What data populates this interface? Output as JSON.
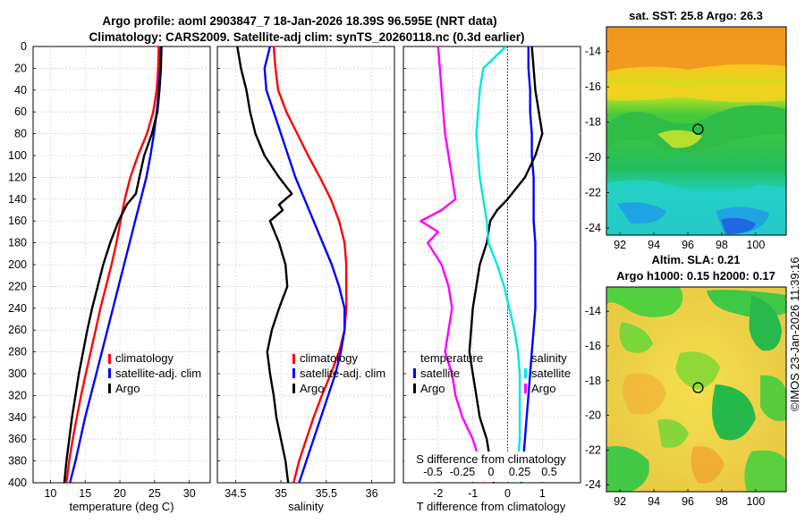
{
  "main_title": {
    "line1": "Argo profile: aoml 2903847_7 18-Jan-2026 18.39S 96.595E (NRT data)",
    "line2": "Climatology: CARS2009. Satellite-adj clim: synTS_20260118.nc (0.3d earlier)"
  },
  "watermark": "©IMOS 23-Jan-2026 11:39:16",
  "colors": {
    "climatology": "#ff0000",
    "satellite": "#0000ff",
    "argo": "#000000",
    "salinity_satellite": "#00e5e5",
    "salinity_argo": "#ff00ff"
  },
  "chart_data": [
    {
      "id": "temperature",
      "type": "line",
      "xlabel": "temperature (deg C)",
      "ylabel": "",
      "xlim": [
        7.5,
        33
      ],
      "ylim": [
        400,
        0
      ],
      "xticks": [
        10,
        15,
        20,
        25,
        30
      ],
      "xticklabels": [
        "10",
        "15",
        "20",
        "25",
        "30"
      ],
      "yticks": [
        0,
        20,
        40,
        60,
        80,
        100,
        120,
        140,
        160,
        180,
        200,
        220,
        240,
        260,
        280,
        300,
        320,
        340,
        360,
        380,
        400
      ],
      "grid": true,
      "legend": [
        "climatology",
        "satellite-adj. clim",
        "Argo"
      ],
      "legend_position": "lower-right",
      "series": [
        {
          "name": "climatology",
          "color": "#ff0000",
          "depth": [
            0,
            20,
            40,
            60,
            80,
            100,
            120,
            140,
            160,
            180,
            200,
            220,
            240,
            260,
            280,
            300,
            320,
            340,
            360,
            380,
            400
          ],
          "x": [
            25.6,
            25.5,
            25.3,
            24.8,
            23.9,
            22.6,
            21.5,
            20.7,
            20.1,
            19.5,
            18.8,
            18.0,
            17.2,
            16.5,
            15.8,
            15.1,
            14.4,
            13.8,
            13.2,
            12.7,
            12.3
          ]
        },
        {
          "name": "satellite-adj. clim",
          "color": "#0000ff",
          "depth": [
            0,
            20,
            40,
            60,
            80,
            100,
            120,
            140,
            160,
            180,
            200,
            220,
            240,
            260,
            280,
            300,
            320,
            340,
            360,
            380,
            400
          ],
          "x": [
            25.9,
            25.8,
            25.6,
            25.3,
            24.9,
            24.4,
            23.8,
            23.0,
            22.2,
            21.4,
            20.6,
            19.8,
            19.0,
            18.2,
            17.4,
            16.6,
            15.8,
            15.0,
            14.3,
            13.6,
            12.8
          ]
        },
        {
          "name": "Argo",
          "color": "#000000",
          "depth": [
            0,
            20,
            40,
            60,
            80,
            100,
            120,
            135,
            145,
            160,
            180,
            200,
            220,
            240,
            260,
            280,
            300,
            320,
            340,
            360,
            380,
            400
          ],
          "x": [
            26.0,
            25.9,
            25.7,
            25.4,
            24.6,
            23.5,
            22.8,
            22.3,
            21.0,
            19.8,
            18.6,
            17.6,
            16.8,
            16.0,
            15.3,
            14.7,
            14.1,
            13.6,
            13.1,
            12.7,
            12.3,
            12.0
          ]
        }
      ]
    },
    {
      "id": "salinity",
      "type": "line",
      "xlabel": "salinity",
      "ylabel": "",
      "xlim": [
        34.3,
        36.25
      ],
      "ylim": [
        400,
        0
      ],
      "xticks": [
        34.5,
        35,
        35.5,
        36
      ],
      "xticklabels": [
        "34.5",
        "35",
        "35.5",
        "36"
      ],
      "grid": true,
      "legend": [
        "climatology",
        "satellite-adj. clim",
        "Argo"
      ],
      "legend_position": "lower-right",
      "series": [
        {
          "name": "climatology",
          "color": "#ff0000",
          "depth": [
            0,
            20,
            40,
            60,
            80,
            100,
            120,
            140,
            160,
            180,
            200,
            220,
            240,
            260,
            280,
            300,
            320,
            340,
            360,
            380,
            400
          ],
          "x": [
            34.92,
            34.94,
            34.97,
            35.06,
            35.18,
            35.3,
            35.43,
            35.55,
            35.64,
            35.7,
            35.72,
            35.72,
            35.72,
            35.7,
            35.64,
            35.55,
            35.45,
            35.36,
            35.28,
            35.2,
            35.14
          ]
        },
        {
          "name": "satellite-adj. clim",
          "color": "#0000ff",
          "depth": [
            0,
            20,
            40,
            60,
            80,
            100,
            120,
            140,
            160,
            180,
            200,
            220,
            240,
            260,
            280,
            300,
            320,
            340,
            360,
            380,
            400
          ],
          "x": [
            34.88,
            34.82,
            34.84,
            34.92,
            35.0,
            35.08,
            35.16,
            35.26,
            35.36,
            35.46,
            35.56,
            35.64,
            35.7,
            35.7,
            35.66,
            35.6,
            35.52,
            35.44,
            35.36,
            35.28,
            35.2
          ]
        },
        {
          "name": "Argo",
          "color": "#000000",
          "depth": [
            0,
            20,
            40,
            60,
            80,
            100,
            120,
            135,
            145,
            150,
            160,
            180,
            200,
            220,
            240,
            260,
            280,
            300,
            320,
            340,
            360,
            380,
            400
          ],
          "x": [
            34.52,
            34.56,
            34.62,
            34.66,
            34.72,
            34.82,
            34.98,
            35.12,
            34.98,
            35.02,
            34.88,
            34.98,
            35.05,
            35.07,
            34.98,
            34.9,
            34.85,
            34.88,
            34.92,
            34.95,
            35.0,
            35.05,
            35.08
          ]
        }
      ]
    },
    {
      "id": "difference",
      "type": "line",
      "xlabel": "T difference from climatology",
      "top_axis_label": "S difference from climatology",
      "xlim": [
        -3,
        2.1
      ],
      "ylim": [
        400,
        0
      ],
      "xticks": [
        -2,
        -1,
        0,
        1
      ],
      "xticklabels": [
        "-2",
        "-1",
        "0",
        "1"
      ],
      "top_ticklabels": [
        "-0.5",
        "-0.25",
        "0",
        "0.25",
        "0.5"
      ],
      "zero_line": "dotted",
      "grid": true,
      "legend_temperature_title": "temperature",
      "legend_salinity_title": "salinity",
      "legend_temperature": [
        "satellite",
        "Argo"
      ],
      "legend_salinity": [
        "satellite",
        "Argo"
      ],
      "series": [
        {
          "name": "T satellite",
          "color": "#0000ff",
          "depth": [
            0,
            20,
            40,
            60,
            80,
            100,
            120,
            140,
            160,
            180,
            200,
            220,
            240,
            260,
            280,
            300,
            320,
            340,
            360,
            380,
            400
          ],
          "x": [
            0.6,
            0.6,
            0.65,
            0.65,
            0.7,
            0.7,
            0.75,
            0.75,
            0.75,
            0.8,
            0.8,
            0.8,
            0.8,
            0.75,
            0.7,
            0.65,
            0.6,
            0.55,
            0.5,
            0.45,
            0.4
          ]
        },
        {
          "name": "T Argo",
          "color": "#000000",
          "depth": [
            0,
            20,
            40,
            60,
            80,
            100,
            120,
            140,
            150,
            160,
            180,
            200,
            220,
            240,
            260,
            280,
            300,
            320,
            340,
            360,
            380,
            400
          ],
          "x": [
            0.7,
            0.75,
            0.8,
            0.9,
            1.0,
            0.8,
            0.5,
            0.0,
            -0.3,
            -0.5,
            -0.6,
            -0.8,
            -0.9,
            -1.0,
            -1.05,
            -1.1,
            -1.0,
            -0.9,
            -0.8,
            -0.6,
            -0.5,
            -0.4
          ]
        },
        {
          "name": "S satellite",
          "color": "#00e5e5",
          "depth": [
            0,
            20,
            40,
            60,
            80,
            100,
            120,
            140,
            160,
            180,
            200,
            220,
            240,
            260,
            280,
            300,
            320,
            340,
            360,
            380,
            400
          ],
          "x": [
            -0.05,
            -0.7,
            -0.8,
            -0.85,
            -0.9,
            -0.85,
            -0.8,
            -0.7,
            -0.6,
            -0.55,
            -0.3,
            -0.1,
            0.05,
            0.2,
            0.3,
            0.35,
            0.35,
            0.35,
            0.35,
            0.3,
            0.3
          ]
        },
        {
          "name": "S Argo",
          "color": "#ff00ff",
          "depth": [
            0,
            20,
            40,
            60,
            80,
            100,
            120,
            140,
            150,
            160,
            170,
            180,
            200,
            220,
            240,
            260,
            280,
            300,
            320,
            340,
            360,
            380,
            400
          ],
          "x": [
            -2.0,
            -1.95,
            -1.9,
            -1.85,
            -1.8,
            -1.7,
            -1.6,
            -1.5,
            -1.9,
            -2.5,
            -2.0,
            -2.3,
            -1.9,
            -1.7,
            -1.6,
            -1.7,
            -1.8,
            -1.6,
            -1.5,
            -1.3,
            -1.0,
            -0.8,
            -0.7
          ]
        }
      ]
    },
    {
      "id": "sst_map",
      "type": "heatmap",
      "title": "sat. SST: 25.8 Argo: 26.3",
      "xlim": [
        91.2,
        101.8
      ],
      "ylim": [
        -24.4,
        -12.6
      ],
      "xticks": [
        92,
        94,
        96,
        98,
        100
      ],
      "xticklabels": [
        "92",
        "94",
        "96",
        "98",
        "100"
      ],
      "yticks": [
        -14,
        -16,
        -18,
        -20,
        -22,
        -24
      ],
      "yticklabels": [
        "-14",
        "-16",
        "-18",
        "-20",
        "-22",
        "-24"
      ],
      "marker": {
        "lon": 96.6,
        "lat": -18.4
      }
    },
    {
      "id": "sla_map",
      "type": "heatmap",
      "title_line1": "Altim. SLA: 0.21",
      "title_line2": "Argo h1000: 0.15 h2000: 0.17",
      "xlim": [
        91.2,
        101.8
      ],
      "ylim": [
        -24.4,
        -12.6
      ],
      "xticks": [
        92,
        94,
        96,
        98,
        100
      ],
      "xticklabels": [
        "92",
        "94",
        "96",
        "98",
        "100"
      ],
      "yticks": [
        -14,
        -16,
        -18,
        -20,
        -22,
        -24
      ],
      "yticklabels": [
        "-14",
        "-16",
        "-18",
        "-20",
        "-22",
        "-24"
      ],
      "marker": {
        "lon": 96.6,
        "lat": -18.4
      }
    }
  ]
}
